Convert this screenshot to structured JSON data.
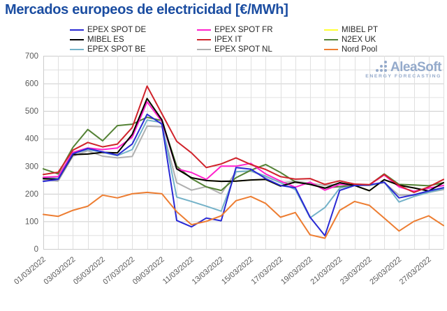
{
  "title": "Mercados europeos de electricidad [€/MWh]",
  "logo": {
    "name": "AleaSoft",
    "tagline": "ENERGY FORECASTING",
    "color": "#94aacb"
  },
  "legend": {
    "order": [
      "EPEX SPOT DE",
      "MIBEL ES",
      "EPEX SPOT BE",
      "EPEX SPOT FR",
      "IPEX IT",
      "EPEX SPOT NL",
      "MIBEL PT",
      "N2EX UK",
      "Nord Pool"
    ]
  },
  "axes": {
    "y_ticks": [
      0,
      100,
      200,
      300,
      400,
      500,
      600,
      700
    ],
    "x_tick_labels": [
      "01/03/2022",
      "03/03/2022",
      "05/03/2022",
      "07/03/2022",
      "09/03/2022",
      "11/03/2022",
      "13/03/2022",
      "15/03/2022",
      "17/03/2022",
      "19/03/2022",
      "21/03/2022",
      "23/03/2022",
      "25/03/2022",
      "27/03/2022"
    ]
  },
  "chart_data": {
    "type": "line",
    "title": "Mercados europeos de electricidad [€/MWh]",
    "xlabel": "",
    "ylabel": "€/MWh",
    "ylim": [
      0,
      700
    ],
    "grid": true,
    "legend_position": "top",
    "x": [
      "01/03/2022",
      "02/03/2022",
      "03/03/2022",
      "04/03/2022",
      "05/03/2022",
      "06/03/2022",
      "07/03/2022",
      "08/03/2022",
      "09/03/2022",
      "10/03/2022",
      "11/03/2022",
      "12/03/2022",
      "13/03/2022",
      "14/03/2022",
      "15/03/2022",
      "16/03/2022",
      "17/03/2022",
      "18/03/2022",
      "19/03/2022",
      "20/03/2022",
      "21/03/2022",
      "22/03/2022",
      "23/03/2022",
      "24/03/2022",
      "25/03/2022",
      "26/03/2022",
      "27/03/2022",
      "28/03/2022"
    ],
    "series": [
      {
        "name": "MIBEL PT",
        "color": "#ffff33",
        "values": [
          255,
          252,
          342,
          344,
          350,
          348,
          415,
          545,
          468,
          290,
          258,
          248,
          245,
          246,
          250,
          252,
          228,
          242,
          234,
          220,
          240,
          230,
          211,
          251,
          231,
          221,
          210,
          240
        ]
      },
      {
        "name": "EPEX SPOT NL",
        "color": "#b0b0b0",
        "values": [
          250,
          246,
          336,
          356,
          336,
          330,
          335,
          445,
          443,
          240,
          213,
          226,
          200,
          280,
          282,
          262,
          240,
          245,
          238,
          230,
          235,
          232,
          230,
          240,
          195,
          195,
          205,
          215
        ]
      },
      {
        "name": "EPEX SPOT BE",
        "color": "#74b2c8",
        "values": [
          258,
          256,
          346,
          360,
          350,
          338,
          360,
          467,
          458,
          188,
          172,
          155,
          137,
          280,
          283,
          264,
          240,
          215,
          113,
          150,
          220,
          232,
          230,
          242,
          170,
          190,
          205,
          218
        ]
      },
      {
        "name": "N2EX UK",
        "color": "#548235",
        "values": [
          290,
          272,
          368,
          433,
          392,
          447,
          452,
          477,
          465,
          300,
          255,
          225,
          212,
          258,
          285,
          306,
          277,
          243,
          234,
          221,
          226,
          232,
          232,
          272,
          234,
          232,
          229,
          240
        ]
      },
      {
        "name": "EPEX SPOT FR",
        "color": "#ff22cc",
        "values": [
          260,
          262,
          350,
          366,
          360,
          366,
          405,
          533,
          462,
          290,
          277,
          252,
          300,
          300,
          310,
          272,
          246,
          224,
          242,
          213,
          234,
          232,
          232,
          268,
          225,
          209,
          220,
          230
        ]
      },
      {
        "name": "MIBEL ES",
        "color": "#000000",
        "values": [
          255,
          252,
          342,
          344,
          350,
          348,
          415,
          545,
          468,
          290,
          258,
          248,
          245,
          246,
          250,
          252,
          228,
          242,
          234,
          220,
          240,
          230,
          211,
          251,
          231,
          221,
          210,
          240
        ]
      },
      {
        "name": "EPEX SPOT DE",
        "color": "#2929d4",
        "values": [
          245,
          252,
          345,
          364,
          352,
          340,
          380,
          488,
          452,
          103,
          80,
          112,
          102,
          295,
          289,
          255,
          230,
          222,
          115,
          48,
          212,
          230,
          232,
          242,
          185,
          196,
          210,
          222
        ]
      },
      {
        "name": "IPEX IT",
        "color": "#d0232b",
        "values": [
          270,
          278,
          358,
          386,
          370,
          380,
          440,
          590,
          490,
          390,
          348,
          295,
          308,
          330,
          306,
          288,
          262,
          253,
          255,
          234,
          247,
          235,
          233,
          270,
          230,
          205,
          225,
          252
        ]
      },
      {
        "name": "Nord Pool",
        "color": "#ed7d31",
        "values": [
          125,
          118,
          140,
          155,
          195,
          185,
          200,
          205,
          200,
          135,
          88,
          100,
          120,
          175,
          190,
          165,
          115,
          132,
          51,
          39,
          140,
          172,
          158,
          112,
          65,
          100,
          120,
          85
        ]
      }
    ]
  },
  "style": {
    "grid_major": "#cccccc",
    "grid_minor": "#e0e0e0",
    "tick_color": "#595959",
    "title_color": "#1b4da1"
  }
}
